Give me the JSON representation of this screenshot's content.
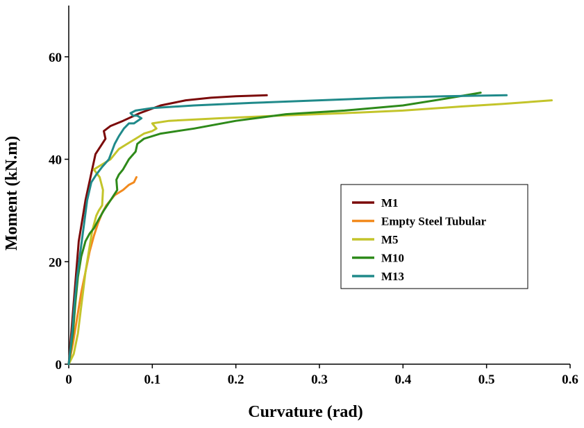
{
  "chart_data": {
    "type": "line",
    "title": "",
    "xlabel": "Curvature (rad)",
    "ylabel": "Moment (kN.m)",
    "xlim": [
      0,
      0.6
    ],
    "ylim": [
      0,
      70
    ],
    "xticks": [
      "0",
      "0.1",
      "0.2",
      "0.3",
      "0.4",
      "0.5",
      "0.6"
    ],
    "yticks": [
      "0",
      "20",
      "40",
      "60"
    ],
    "grid": false,
    "legend_position": "right",
    "series": [
      {
        "name": "M1",
        "color": "#7b0a0a",
        "x": [
          0.0,
          0.003,
          0.006,
          0.009,
          0.012,
          0.016,
          0.02,
          0.024,
          0.028,
          0.032,
          0.036,
          0.04,
          0.044,
          0.042,
          0.05,
          0.065,
          0.085,
          0.11,
          0.14,
          0.17,
          0.2,
          0.237
        ],
        "y": [
          0.0,
          6.0,
          12.0,
          18.0,
          24.0,
          28.0,
          32.0,
          35.0,
          38.0,
          41.0,
          42.0,
          43.0,
          44.0,
          45.5,
          46.5,
          47.5,
          49.0,
          50.5,
          51.5,
          52.0,
          52.3,
          52.5
        ]
      },
      {
        "name": "Empty Steel Tubular",
        "color": "#f28a1e",
        "x": [
          0.0,
          0.005,
          0.01,
          0.015,
          0.02,
          0.025,
          0.03,
          0.035,
          0.04,
          0.045,
          0.055,
          0.065,
          0.072,
          0.078,
          0.081
        ],
        "y": [
          0.0,
          4.0,
          9.0,
          14.0,
          18.0,
          22.0,
          25.0,
          27.5,
          29.5,
          31.0,
          33.0,
          34.0,
          35.0,
          35.5,
          36.5
        ]
      },
      {
        "name": "M5",
        "color": "#c3c42a",
        "x": [
          0.0,
          0.006,
          0.011,
          0.014,
          0.017,
          0.02,
          0.024,
          0.028,
          0.033,
          0.036,
          0.04,
          0.041,
          0.037,
          0.03,
          0.04,
          0.05,
          0.06,
          0.07,
          0.08,
          0.09,
          0.1,
          0.105,
          0.1,
          0.12,
          0.18,
          0.25,
          0.33,
          0.4,
          0.47,
          0.52,
          0.578
        ],
        "y": [
          0.0,
          2.0,
          6.0,
          10.0,
          14.0,
          18.0,
          22.0,
          26.0,
          29.0,
          30.0,
          31.0,
          34.0,
          36.5,
          38.0,
          39.0,
          40.0,
          42.0,
          43.0,
          44.0,
          45.0,
          45.5,
          46.0,
          47.0,
          47.5,
          48.0,
          48.5,
          49.0,
          49.5,
          50.3,
          50.8,
          51.5
        ]
      },
      {
        "name": "M10",
        "color": "#2e8a1a",
        "x": [
          0.0,
          0.005,
          0.008,
          0.011,
          0.015,
          0.02,
          0.025,
          0.03,
          0.035,
          0.042,
          0.05,
          0.058,
          0.057,
          0.06,
          0.065,
          0.072,
          0.08,
          0.082,
          0.09,
          0.11,
          0.15,
          0.2,
          0.26,
          0.33,
          0.4,
          0.45,
          0.493
        ],
        "y": [
          0.0,
          6.0,
          12.0,
          17.0,
          21.0,
          24.0,
          25.5,
          26.5,
          28.0,
          30.0,
          32.0,
          34.0,
          36.0,
          37.0,
          38.0,
          40.0,
          41.5,
          43.0,
          44.0,
          45.0,
          46.0,
          47.5,
          48.8,
          49.5,
          50.5,
          51.8,
          53.0
        ]
      },
      {
        "name": "M13",
        "color": "#208a8a",
        "x": [
          0.0,
          0.004,
          0.007,
          0.01,
          0.014,
          0.018,
          0.022,
          0.027,
          0.033,
          0.04,
          0.048,
          0.055,
          0.06,
          0.066,
          0.072,
          0.078,
          0.087,
          0.082,
          0.077,
          0.074,
          0.08,
          0.1,
          0.15,
          0.22,
          0.3,
          0.38,
          0.45,
          0.524
        ],
        "y": [
          0.0,
          6.0,
          12.0,
          17.0,
          22.0,
          27.0,
          32.0,
          35.5,
          37.0,
          38.5,
          40.0,
          43.0,
          44.5,
          46.0,
          47.0,
          47.0,
          48.0,
          48.5,
          48.5,
          49.0,
          49.5,
          50.0,
          50.5,
          51.0,
          51.5,
          52.0,
          52.3,
          52.5
        ]
      }
    ]
  }
}
